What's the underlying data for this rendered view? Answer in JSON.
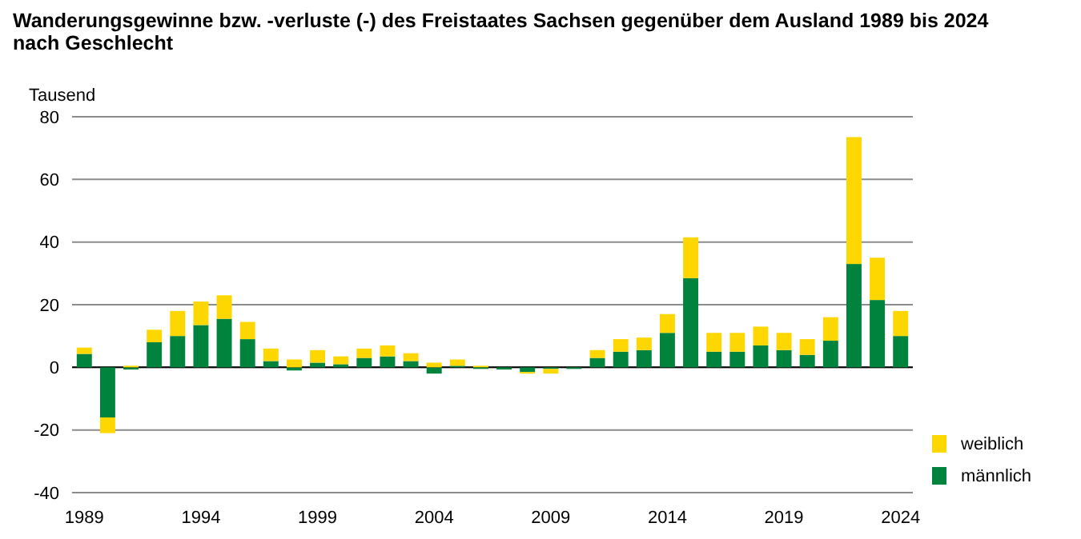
{
  "chart_data": {
    "type": "bar",
    "title": "Wanderungsgewinne bzw. -verluste (-) des Freistaates Sachsen gegenüber dem Ausland  1989 bis 2024",
    "subtitle": "nach Geschlecht",
    "ylabel": "Tausend",
    "categories": [
      "1989",
      null,
      null,
      null,
      null,
      "1994",
      null,
      null,
      null,
      null,
      "1999",
      null,
      null,
      null,
      null,
      "2004",
      null,
      null,
      null,
      null,
      "2009",
      null,
      null,
      null,
      null,
      "2014",
      null,
      null,
      null,
      null,
      "2019",
      null,
      null,
      null,
      null,
      "2024"
    ],
    "stacked": true,
    "series": [
      {
        "name": "männlich",
        "color": "#00843d",
        "values": [
          4.3,
          -16,
          -0.7,
          8,
          10,
          13.5,
          15.5,
          9,
          2,
          -1,
          1.5,
          1,
          3,
          3.5,
          2,
          -2,
          0.5,
          -0.5,
          -0.7,
          -1.5,
          -0.5,
          -0.5,
          3,
          5,
          5.5,
          11,
          28.5,
          5,
          5,
          7,
          5.5,
          4,
          8.5,
          33,
          21.5,
          10
        ]
      },
      {
        "name": "weiblich",
        "color": "#ffd700",
        "values": [
          2,
          -5,
          0.5,
          4,
          8,
          7.5,
          7.5,
          5.5,
          4,
          2.5,
          4,
          2.5,
          3,
          3.5,
          2.5,
          1.5,
          2,
          0.5,
          0,
          -0.5,
          -1.5,
          0,
          2.5,
          4,
          4,
          6,
          13,
          6,
          6,
          6,
          5.5,
          5,
          7.5,
          40.5,
          13.5,
          8
        ]
      }
    ],
    "ylim": [
      -40,
      80
    ],
    "yticks": [
      -40,
      -20,
      0,
      20,
      40,
      60,
      80
    ],
    "grid": "y",
    "legend": "bottom right"
  }
}
